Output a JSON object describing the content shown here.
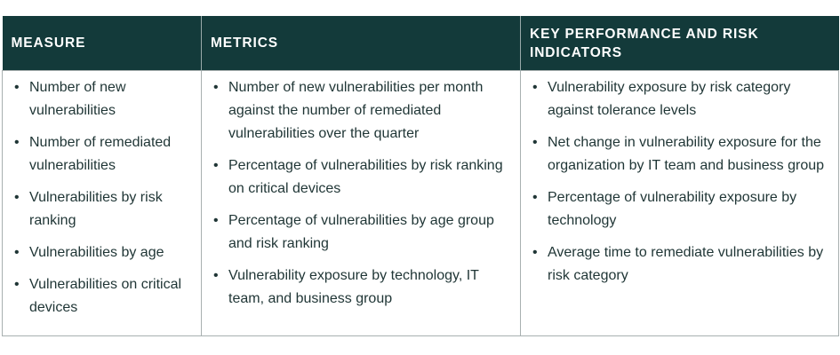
{
  "headers": [
    "MEASURE",
    "METRICS",
    "KEY PERFORMANCE AND RISK INDICATORS"
  ],
  "columns": [
    [
      "Number of new vulnerabilities",
      "Number of remediated vulnerabilities",
      "Vulnerabilities by risk ranking",
      "Vulnerabilities by age",
      "Vulnerabilities on critical devices"
    ],
    [
      "Number of new vulnerabilities per month against the number of remediated vulnerabilities over the quarter",
      "Percentage of vulnerabilities by risk ranking on critical devices",
      "Percentage of vulnerabilities by age group and risk ranking",
      "Vulnerability exposure by technology, IT team, and business group"
    ],
    [
      "Vulnerability exposure by risk category against tolerance levels",
      "Net change in vulnerability exposure for the organization by IT team and business group",
      "Percentage of vulnerability exposure by technology",
      "Average time to remediate vulnerabilities by risk category"
    ]
  ],
  "colors": {
    "header_bg": "#133a3a",
    "header_text": "#ffffff",
    "body_text": "#1f3535"
  }
}
